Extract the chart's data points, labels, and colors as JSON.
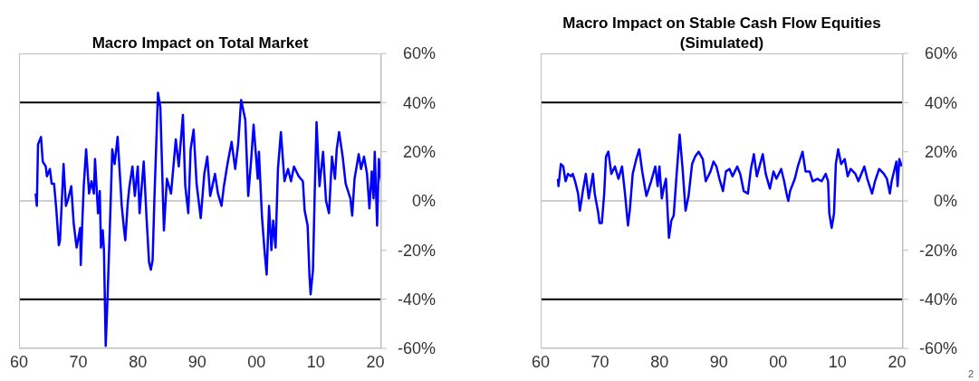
{
  "chart_data": [
    {
      "type": "line",
      "title": "Macro Impact on Total Market",
      "xlim": [
        1960,
        2021
      ],
      "xticks": [
        {
          "value": 1960,
          "label": "60"
        },
        {
          "value": 1970,
          "label": "70"
        },
        {
          "value": 1980,
          "label": "80"
        },
        {
          "value": 1990,
          "label": "90"
        },
        {
          "value": 2000,
          "label": "00"
        },
        {
          "value": 2010,
          "label": "10"
        },
        {
          "value": 2020,
          "label": "20"
        }
      ],
      "ylim": [
        -60,
        60
      ],
      "yticks": [
        {
          "value": -60,
          "label": "-60%"
        },
        {
          "value": -40,
          "label": "-40%"
        },
        {
          "value": -20,
          "label": "-20%"
        },
        {
          "value": 0,
          "label": "0%"
        },
        {
          "value": 20,
          "label": "20%"
        },
        {
          "value": 40,
          "label": "40%"
        },
        {
          "value": 60,
          "label": "60%"
        }
      ],
      "ref_lines": [
        {
          "axis": "y",
          "value": 40,
          "color": "#000000"
        },
        {
          "axis": "y",
          "value": -40,
          "color": "#000000"
        },
        {
          "axis": "y",
          "value": 0,
          "color": "#bfbfbf"
        }
      ],
      "series": [
        {
          "color": "#0000ff",
          "x": [
            1962.8,
            1963.0,
            1963.2,
            1963.7,
            1964.0,
            1964.5,
            1964.7,
            1965.2,
            1965.5,
            1965.9,
            1966.3,
            1966.7,
            1966.9,
            1967.5,
            1967.9,
            1968.3,
            1968.8,
            1969.2,
            1969.7,
            1970.3,
            1970.4,
            1970.7,
            1970.9,
            1971.3,
            1971.8,
            1972.2,
            1972.6,
            1972.8,
            1973.3,
            1973.6,
            1973.8,
            1974.1,
            1974.3,
            1974.6,
            1974.9,
            1975.4,
            1975.7,
            1976.1,
            1976.6,
            1977.3,
            1977.7,
            1977.9,
            1978.3,
            1978.6,
            1979.1,
            1979.5,
            1980.0,
            1980.3,
            1981.0,
            1981.5,
            1981.9,
            1982.2,
            1982.5,
            1982.8,
            1983.4,
            1983.8,
            1984.4,
            1984.9,
            1985.6,
            1986.4,
            1986.9,
            1987.6,
            1988.0,
            1988.5,
            1988.9,
            1989.4,
            1989.9,
            1990.6,
            1991.2,
            1991.7,
            1992.2,
            1993.0,
            1993.5,
            1994.1,
            1994.5,
            1995.1,
            1995.8,
            1996.4,
            1996.9,
            1997.4,
            1998.1,
            1998.6,
            1999.1,
            1999.5,
            2000.2,
            2000.4,
            2000.9,
            2001.3,
            2001.7,
            2002.1,
            2002.5,
            2002.8,
            2003.2,
            2003.6,
            2004.1,
            2004.7,
            2005.3,
            2005.8,
            2006.3,
            2007.1,
            2007.8,
            2008.1,
            2008.6,
            2008.9,
            2009.1,
            2009.5,
            2009.8,
            2010.1,
            2010.6,
            2011.2,
            2011.7,
            2012.2,
            2012.7,
            2013.2,
            2013.5,
            2013.9,
            2014.5,
            2015.0,
            2015.8,
            2016.1,
            2016.5,
            2017.2,
            2017.6,
            2018.1,
            2018.6,
            2019.0,
            2019.4,
            2019.7,
            2019.9,
            2020.3,
            2020.6,
            2021.0
          ],
          "values": [
            3,
            -2,
            23,
            26,
            16,
            14,
            10,
            13,
            7,
            7,
            -4,
            -18,
            -16,
            15,
            -2,
            1,
            6,
            -9,
            -19,
            -11,
            -26,
            -6,
            6,
            21,
            3,
            8,
            3,
            17,
            -5,
            4,
            -19,
            -12,
            -20,
            -59,
            -40,
            -3,
            21,
            15,
            26,
            -2,
            -12,
            -16,
            -1,
            6,
            14,
            2,
            14,
            -5,
            16,
            -8,
            -25,
            -28,
            -24,
            1,
            44,
            38,
            -12,
            9,
            3,
            25,
            14,
            35,
            6,
            -5,
            21,
            29,
            7,
            -7,
            11,
            18,
            2,
            11,
            3,
            -2,
            6,
            15,
            24,
            13,
            23,
            41,
            33,
            2,
            17,
            31,
            9,
            20,
            -6,
            -19,
            -30,
            -2,
            -20,
            -8,
            -19,
            13,
            28,
            8,
            13,
            8,
            14,
            10,
            8,
            -4,
            -10,
            -30,
            -38,
            -28,
            4,
            32,
            6,
            20,
            0,
            -5,
            18,
            9,
            21,
            28,
            18,
            7,
            1,
            -6,
            9,
            19,
            13,
            18,
            11,
            -3,
            12,
            1,
            20,
            -10,
            17,
            8
          ]
        }
      ]
    },
    {
      "type": "line",
      "title": "Macro Impact on Stable Cash Flow Equities (Simulated)",
      "xlim": [
        1960,
        2021
      ],
      "xticks": [
        {
          "value": 1960,
          "label": "60"
        },
        {
          "value": 1970,
          "label": "70"
        },
        {
          "value": 1980,
          "label": "80"
        },
        {
          "value": 1990,
          "label": "90"
        },
        {
          "value": 2000,
          "label": "00"
        },
        {
          "value": 2010,
          "label": "10"
        },
        {
          "value": 2020,
          "label": "20"
        }
      ],
      "ylim": [
        -60,
        60
      ],
      "yticks": [
        {
          "value": -60,
          "label": "-60%"
        },
        {
          "value": -40,
          "label": "-40%"
        },
        {
          "value": -20,
          "label": "-20%"
        },
        {
          "value": 0,
          "label": "0%"
        },
        {
          "value": 20,
          "label": "20%"
        },
        {
          "value": 40,
          "label": "40%"
        },
        {
          "value": 60,
          "label": "60%"
        }
      ],
      "ref_lines": [
        {
          "axis": "y",
          "value": 40,
          "color": "#000000"
        },
        {
          "axis": "y",
          "value": -40,
          "color": "#000000"
        },
        {
          "axis": "y",
          "value": 0,
          "color": "#bfbfbf"
        }
      ],
      "annotations": [
        "2"
      ],
      "series": [
        {
          "color": "#0000ff",
          "x": [
            1962.9,
            1963.0,
            1963.4,
            1963.8,
            1964.2,
            1964.6,
            1965.1,
            1965.4,
            1965.8,
            1966.3,
            1966.6,
            1967.1,
            1967.6,
            1968.1,
            1968.8,
            1969.1,
            1969.7,
            1969.9,
            1970.3,
            1970.7,
            1971.0,
            1971.4,
            1971.9,
            1972.5,
            1973.1,
            1973.7,
            1974.2,
            1974.7,
            1975.0,
            1975.5,
            1976.1,
            1976.6,
            1977.1,
            1977.8,
            1978.6,
            1979.3,
            1979.7,
            1980.0,
            1980.4,
            1980.7,
            1981.1,
            1981.6,
            1982.0,
            1982.4,
            1982.9,
            1983.4,
            1983.9,
            1984.4,
            1984.9,
            1985.5,
            1986.0,
            1986.6,
            1987.3,
            1987.8,
            1988.6,
            1989.1,
            1989.6,
            1990.1,
            1990.7,
            1991.2,
            1991.8,
            1992.3,
            1993.1,
            1993.6,
            1994.2,
            1994.9,
            1995.4,
            1995.9,
            1996.4,
            1997.4,
            1997.9,
            1998.6,
            1999.2,
            1999.7,
            2000.5,
            2001.0,
            2001.4,
            2001.7,
            2002.0,
            2002.8,
            2003.3,
            2004.1,
            2004.6,
            2005.3,
            2005.8,
            2006.6,
            2007.3,
            2008.0,
            2008.4,
            2008.6,
            2009.0,
            2009.4,
            2009.7,
            2010.1,
            2010.6,
            2011.2,
            2011.7,
            2012.2,
            2013.0,
            2013.5,
            2014.5,
            2015.0,
            2015.8,
            2016.3,
            2017.0,
            2017.8,
            2018.3,
            2018.8,
            2019.1,
            2019.9,
            2020.1,
            2020.4,
            2020.8
          ],
          "values": [
            9,
            6,
            15,
            14,
            8,
            11,
            10,
            11,
            8,
            3,
            -4,
            4,
            11,
            1,
            11,
            3,
            -5,
            -9,
            -9,
            3,
            18,
            20,
            11,
            14,
            9,
            14,
            3,
            -10,
            -4,
            11,
            17,
            21,
            12,
            2,
            8,
            14,
            6,
            14,
            1,
            5,
            9,
            -15,
            -8,
            -6,
            11,
            27,
            13,
            -4,
            2,
            15,
            18,
            20,
            17,
            8,
            12,
            16,
            14,
            9,
            4,
            12,
            13,
            10,
            14,
            11,
            4,
            3,
            13,
            19,
            10,
            19,
            11,
            5,
            12,
            9,
            13,
            8,
            3,
            0,
            4,
            9,
            14,
            20,
            12,
            12,
            8,
            9,
            8,
            11,
            8,
            -5,
            -11,
            -5,
            15,
            21,
            15,
            17,
            10,
            13,
            11,
            8,
            14,
            9,
            3,
            8,
            13,
            11,
            9,
            3,
            8,
            16,
            6,
            17,
            14
          ]
        }
      ]
    }
  ]
}
